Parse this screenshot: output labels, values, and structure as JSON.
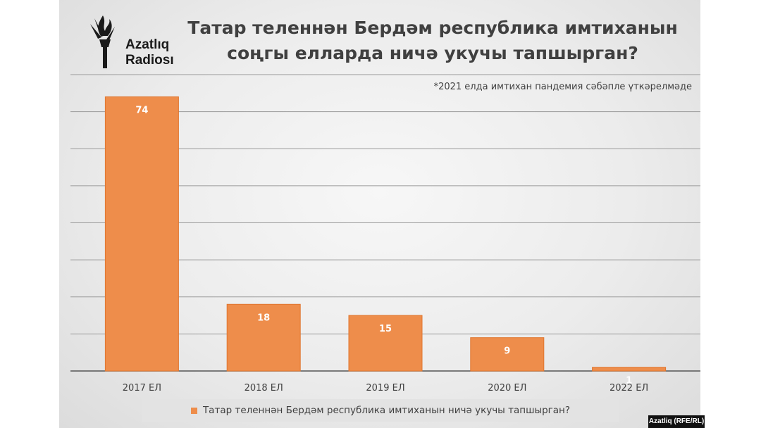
{
  "brand": {
    "line1": "Azatlıq",
    "line2": "Radiosı",
    "credit": "Azatliq (RFE/RL)"
  },
  "title_line1": "Татар теленнән Бердәм республика имтиханын",
  "title_line2": "соңгы елларда ничә укучы тапшырган?",
  "footnote": "*2021 елда имтихан пандемия сәбәпле үткәрелмәде",
  "colors": {
    "bar": "#ee8d4b",
    "bar_border": "#e0762f",
    "grid": "#9a9a9a",
    "label": "#ffffff",
    "axis_text": "#404040"
  },
  "chart_data": {
    "type": "bar",
    "categories": [
      "2017 ЕЛ",
      "2018 ЕЛ",
      "2019 ЕЛ",
      "2020 ЕЛ",
      "2022 ЕЛ"
    ],
    "series": [
      {
        "name": "Татар теленнән Бердәм республика имтиханын ничә укучы тапшырган?",
        "values": [
          74,
          18,
          15,
          9,
          1
        ]
      }
    ],
    "ylim": [
      0,
      80
    ],
    "ytick_step": 10,
    "grid": true,
    "data_labels": true,
    "legend": "bottom"
  }
}
